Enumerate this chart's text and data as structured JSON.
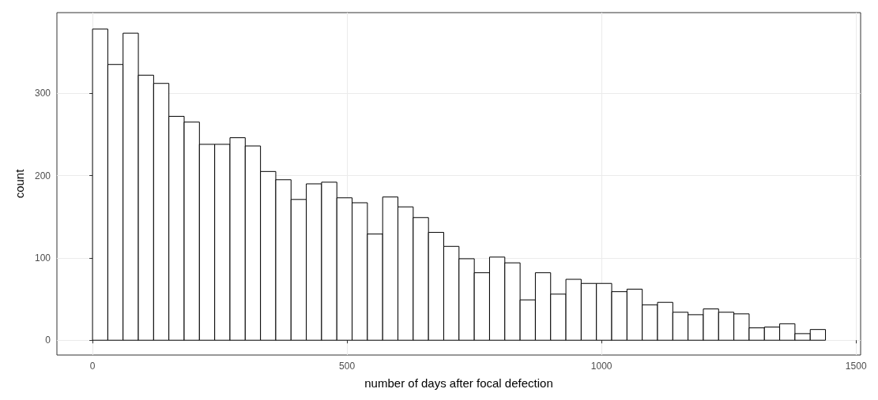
{
  "chart_data": {
    "type": "histogram",
    "xlabel": "number of days after focal defection",
    "ylabel": "count",
    "bins": [
      0,
      30,
      60,
      90,
      120,
      150,
      180,
      210,
      240,
      270,
      300,
      330,
      360,
      390,
      420,
      450,
      480,
      510,
      540,
      570,
      600,
      630,
      660,
      690,
      720,
      750,
      780,
      810,
      840,
      870,
      900,
      930,
      960,
      990,
      1020,
      1050,
      1080,
      1110,
      1140,
      1170,
      1200,
      1230,
      1260,
      1290,
      1320,
      1350,
      1380,
      1410,
      1440
    ],
    "values": [
      378,
      335,
      373,
      322,
      312,
      272,
      265,
      238,
      238,
      246,
      236,
      205,
      195,
      171,
      190,
      192,
      173,
      167,
      129,
      174,
      162,
      149,
      131,
      114,
      99,
      82,
      101,
      94,
      49,
      82,
      56,
      74,
      69,
      69,
      59,
      62,
      43,
      46,
      34,
      31,
      38,
      34,
      32,
      15,
      16,
      20,
      8,
      13
    ],
    "color": "#ffffff",
    "xlim": [
      -70,
      1509
    ],
    "ylim": [
      -18,
      398
    ],
    "xticks": [
      0,
      500,
      1000,
      1500
    ],
    "yticks": [
      0,
      100,
      200,
      300
    ],
    "grid": true
  }
}
